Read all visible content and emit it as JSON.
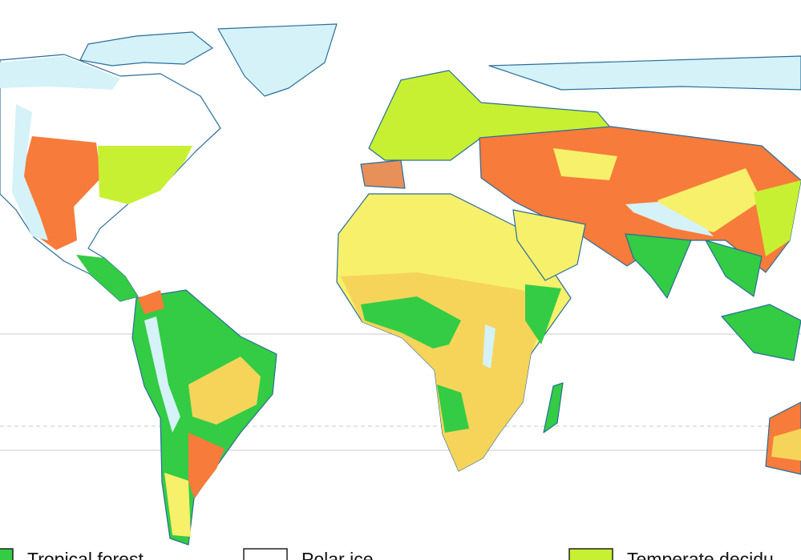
{
  "legend": [
    {
      "label": "Tropical forest"
    },
    {
      "label": "Polar ice"
    },
    {
      "label": "Temperate decidu"
    }
  ]
}
